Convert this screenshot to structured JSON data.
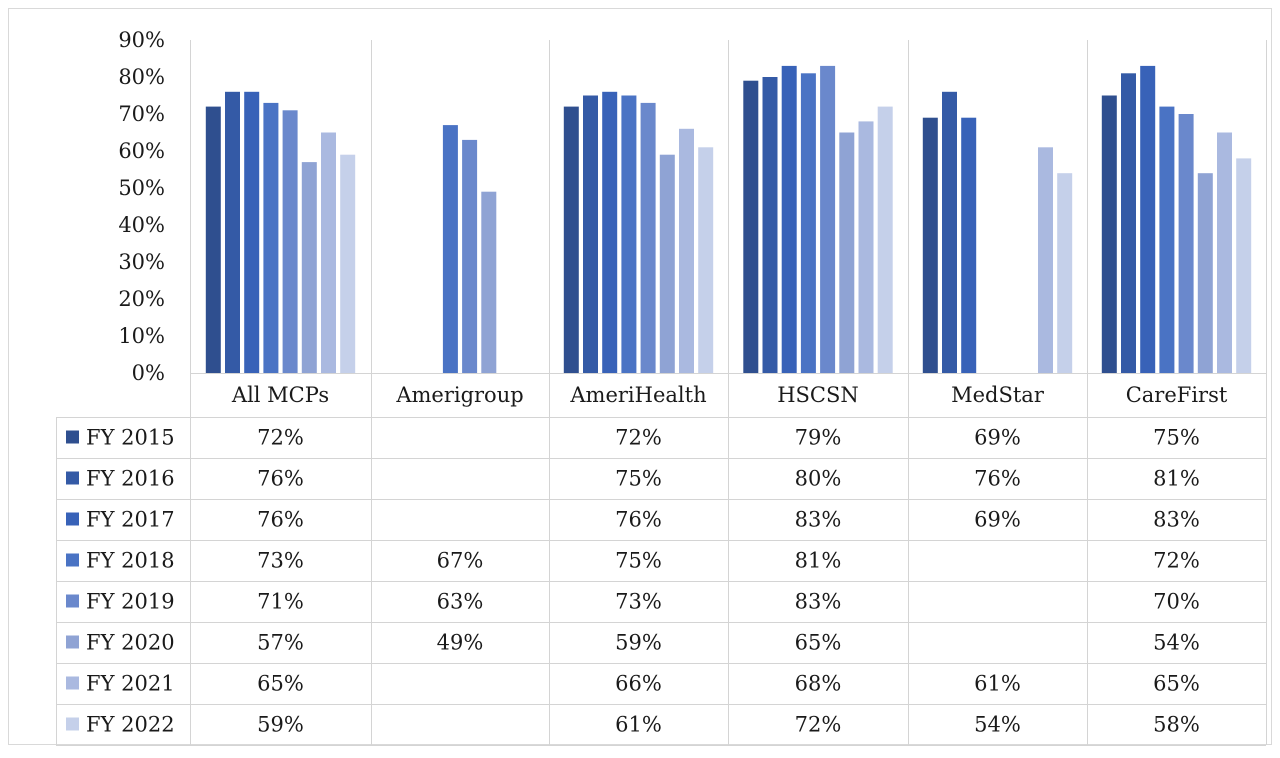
{
  "chart_data": {
    "type": "bar",
    "title": "",
    "xlabel": "",
    "ylabel": "",
    "ylim": [
      0,
      0.9
    ],
    "y_ticks": [
      "0%",
      "10%",
      "20%",
      "30%",
      "40%",
      "50%",
      "60%",
      "70%",
      "80%",
      "90%"
    ],
    "grid": false,
    "legend_position": "data-table-left",
    "categories": [
      "All MCPs",
      "Amerigroup",
      "AmeriHealth",
      "HSCSN",
      "MedStar",
      "CareFirst"
    ],
    "series": [
      {
        "name": "FY 2015",
        "color": "#2f4f8f",
        "values": [
          0.72,
          null,
          0.72,
          0.79,
          0.69,
          0.75
        ],
        "labels": [
          "72%",
          "",
          "72%",
          "79%",
          "69%",
          "75%"
        ]
      },
      {
        "name": "FY 2016",
        "color": "#345aa6",
        "values": [
          0.76,
          null,
          0.75,
          0.8,
          0.76,
          0.81
        ],
        "labels": [
          "76%",
          "",
          "75%",
          "80%",
          "76%",
          "81%"
        ]
      },
      {
        "name": "FY 2017",
        "color": "#3862b8",
        "values": [
          0.76,
          null,
          0.76,
          0.83,
          0.69,
          0.83
        ],
        "labels": [
          "76%",
          "",
          "76%",
          "83%",
          "69%",
          "83%"
        ]
      },
      {
        "name": "FY 2018",
        "color": "#4a73c4",
        "values": [
          0.73,
          0.67,
          0.75,
          0.81,
          null,
          0.72
        ],
        "labels": [
          "73%",
          "67%",
          "75%",
          "81%",
          "",
          "72%"
        ]
      },
      {
        "name": "FY 2019",
        "color": "#6a88cc",
        "values": [
          0.71,
          0.63,
          0.73,
          0.83,
          null,
          0.7
        ],
        "labels": [
          "71%",
          "63%",
          "73%",
          "83%",
          "",
          "70%"
        ]
      },
      {
        "name": "FY 2020",
        "color": "#8fa3d4",
        "values": [
          0.57,
          0.49,
          0.59,
          0.65,
          null,
          0.54
        ],
        "labels": [
          "57%",
          "49%",
          "59%",
          "65%",
          "",
          "54%"
        ]
      },
      {
        "name": "FY 2021",
        "color": "#aab9e0",
        "values": [
          0.65,
          null,
          0.66,
          0.68,
          0.61,
          0.65
        ],
        "labels": [
          "65%",
          "",
          "66%",
          "68%",
          "61%",
          "65%"
        ]
      },
      {
        "name": "FY 2022",
        "color": "#c5d0ea",
        "values": [
          0.59,
          null,
          0.61,
          0.72,
          0.54,
          0.58
        ],
        "labels": [
          "59%",
          "",
          "61%",
          "72%",
          "54%",
          "58%"
        ]
      }
    ]
  }
}
